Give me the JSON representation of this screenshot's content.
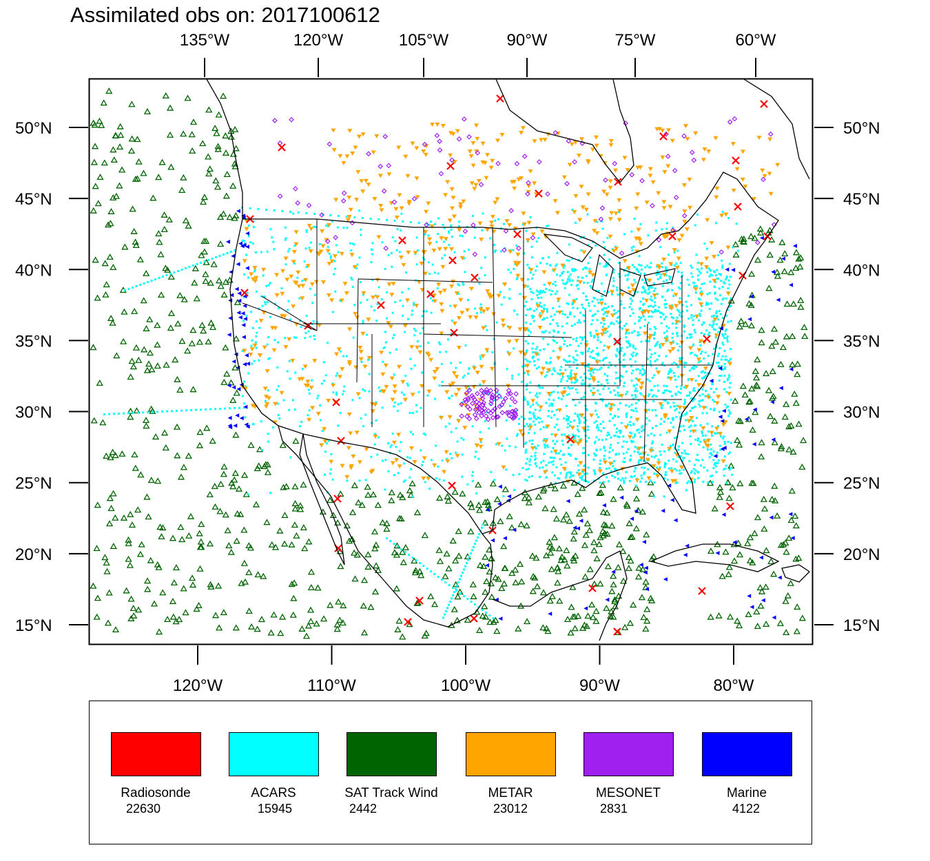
{
  "title": "Assimilated obs on: 2017100612",
  "map": {
    "top_lon_labels": [
      {
        "text": "135°W",
        "lon": -135
      },
      {
        "text": "120°W",
        "lon": -120
      },
      {
        "text": "105°W",
        "lon": -105
      },
      {
        "text": "90°W",
        "lon": -90
      },
      {
        "text": "75°W",
        "lon": -75
      },
      {
        "text": "60°W",
        "lon": -60
      }
    ],
    "bottom_lon_labels": [
      {
        "text": "120°W",
        "lon": -120
      },
      {
        "text": "110°W",
        "lon": -110
      },
      {
        "text": "100°W",
        "lon": -100
      },
      {
        "text": "90°W",
        "lon": -90
      },
      {
        "text": "80°W",
        "lon": -80
      }
    ],
    "lat_labels": [
      {
        "text": "50°N",
        "lat": 50
      },
      {
        "text": "45°N",
        "lat": 45
      },
      {
        "text": "40°N",
        "lat": 40
      },
      {
        "text": "35°N",
        "lat": 35
      },
      {
        "text": "30°N",
        "lat": 30
      },
      {
        "text": "25°N",
        "lat": 25
      },
      {
        "text": "20°N",
        "lat": 20
      },
      {
        "text": "15°N",
        "lat": 15
      }
    ]
  },
  "legend": {
    "items": [
      {
        "name": "Radiosonde",
        "count": "22630",
        "color": "#ff0000"
      },
      {
        "name": "ACARS",
        "count": "15945",
        "color": "#00ffff"
      },
      {
        "name": "SAT Track Wind",
        "count": "2442",
        "color": "#006400"
      },
      {
        "name": "METAR",
        "count": "23012",
        "color": "#ffa500"
      },
      {
        "name": "MESONET",
        "count": "2831",
        "color": "#a020f0"
      },
      {
        "name": "Marine",
        "count": "4122",
        "color": "#0000ff"
      }
    ]
  }
}
